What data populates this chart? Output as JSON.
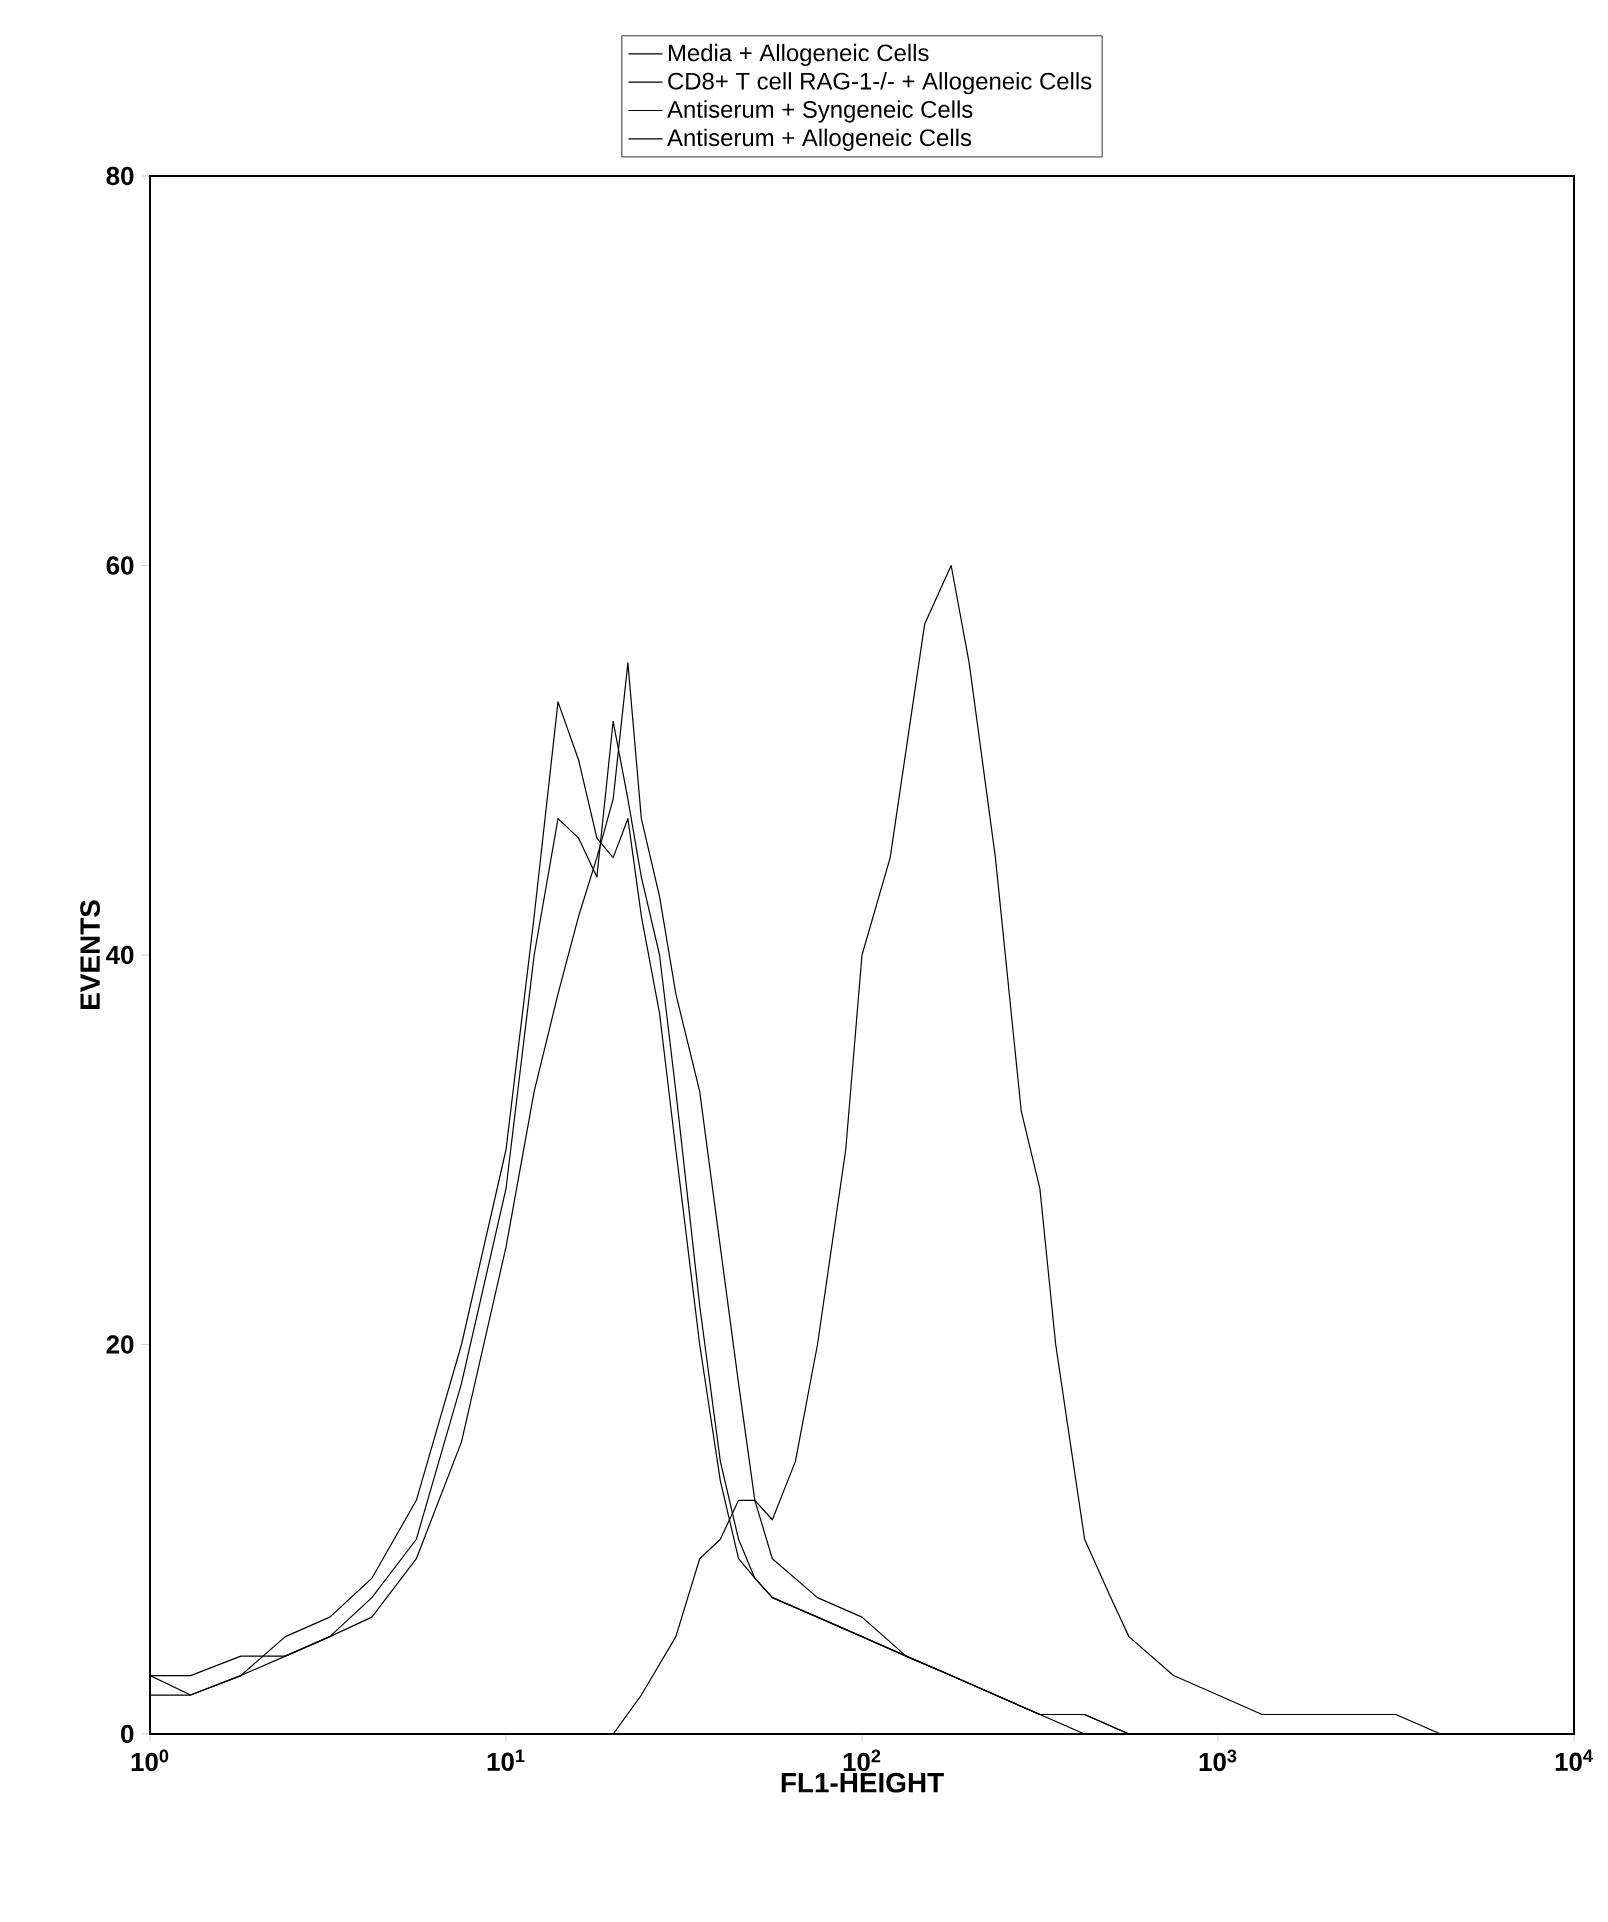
{
  "chart_data": {
    "type": "line",
    "xlabel": "FL1-HEIGHT",
    "ylabel": "EVENTS",
    "log": "x",
    "xlim": [
      1,
      10000
    ],
    "ylim": [
      0,
      80
    ],
    "xticks": [
      {
        "value": 1,
        "label": "10$^{0}$"
      },
      {
        "value": 10,
        "label": "10$^{1}$"
      },
      {
        "value": 100,
        "label": "10$^{2}$"
      },
      {
        "value": 1000,
        "label": "10$^{3}$"
      },
      {
        "value": 10000,
        "label": "10$^{4}$"
      }
    ],
    "yticks": [
      0,
      20,
      40,
      60,
      80
    ],
    "legend": "top",
    "grid": false,
    "series": [
      {
        "name": "Media + Allogeneic Cells",
        "color": "#000000",
        "x": [
          1,
          1.3,
          1.8,
          2.4,
          3.2,
          4.2,
          5.6,
          7.5,
          10,
          12,
          14,
          16,
          18,
          20,
          22,
          24,
          27,
          30,
          35,
          40,
          45,
          50,
          56,
          75,
          100,
          133,
          178,
          237,
          316,
          422,
          562
        ],
        "values": [
          2,
          2,
          3,
          4,
          5,
          7,
          10,
          18,
          28,
          40,
          47,
          46,
          44,
          52,
          48,
          44,
          40,
          33,
          22,
          14,
          10,
          8,
          7,
          6,
          5,
          4,
          3,
          2,
          1,
          0,
          0
        ]
      },
      {
        "name": "CD8+ T cell RAG-1-/- + Allogeneic Cells",
        "color": "#000000",
        "x": [
          1,
          1.3,
          1.8,
          2.4,
          3.2,
          4.2,
          5.6,
          7.5,
          10,
          12,
          14,
          16,
          18,
          20,
          22,
          24,
          27,
          30,
          35,
          40,
          45,
          50,
          56,
          75,
          100,
          133,
          178,
          237,
          316,
          422,
          562
        ],
        "values": [
          3,
          2,
          3,
          5,
          6,
          8,
          12,
          20,
          30,
          42,
          53,
          50,
          46,
          45,
          47,
          42,
          37,
          30,
          20,
          13,
          9,
          8,
          7,
          6,
          5,
          4,
          3,
          2,
          1,
          1,
          0
        ]
      },
      {
        "name": "Antiserum + Syngeneic Cells",
        "color": "#000000",
        "x": [
          1,
          1.3,
          1.8,
          2.4,
          3.2,
          4.2,
          5.6,
          7.5,
          10,
          12,
          14,
          16,
          18,
          20,
          22,
          24,
          27,
          30,
          35,
          40,
          45,
          50,
          56,
          75,
          100,
          133,
          178,
          237,
          316,
          422,
          562
        ],
        "values": [
          3,
          3,
          4,
          4,
          5,
          6,
          9,
          15,
          25,
          33,
          38,
          42,
          45,
          48,
          55,
          47,
          43,
          38,
          33,
          25,
          18,
          12,
          9,
          7,
          6,
          4,
          3,
          2,
          1,
          1,
          0
        ]
      },
      {
        "name": "Antiserum + Allogeneic Cells",
        "color": "#000000",
        "x": [
          7.5,
          10,
          15,
          20,
          24,
          30,
          35,
          40,
          45,
          50,
          56,
          65,
          75,
          90,
          100,
          120,
          150,
          178,
          200,
          237,
          280,
          316,
          350,
          422,
          500,
          562,
          750,
          1000,
          1330,
          1780,
          3160,
          4220
        ],
        "values": [
          0,
          0,
          0,
          0,
          2,
          5,
          9,
          10,
          12,
          12,
          11,
          14,
          20,
          30,
          40,
          45,
          57,
          60,
          55,
          45,
          32,
          28,
          20,
          10,
          7,
          5,
          3,
          2,
          1,
          1,
          1,
          0
        ]
      }
    ]
  }
}
